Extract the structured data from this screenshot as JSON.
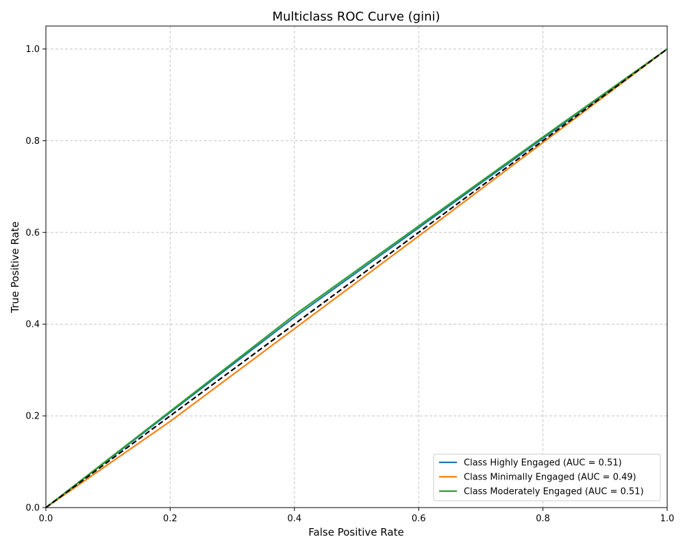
{
  "chart_data": {
    "type": "line",
    "title": "Multiclass ROC Curve (gini)",
    "xlabel": "False Positive Rate",
    "ylabel": "True Positive Rate",
    "xlim": [
      0.0,
      1.0
    ],
    "ylim": [
      0.0,
      1.05
    ],
    "xticks": [
      "0.0",
      "0.2",
      "0.4",
      "0.6",
      "0.8",
      "1.0"
    ],
    "yticks": [
      "0.0",
      "0.2",
      "0.4",
      "0.6",
      "0.8",
      "1.0"
    ],
    "grid": true,
    "legend_position": "bottom-right",
    "series": [
      {
        "name": "Class Highly Engaged (AUC = 0.51)",
        "color": "#1f77b4",
        "x": [
          0.0,
          0.4,
          0.6,
          1.0
        ],
        "y": [
          0.0,
          0.415,
          0.61,
          1.0
        ]
      },
      {
        "name": "Class Minimally Engaged (AUC = 0.49)",
        "color": "#ff7f0e",
        "x": [
          0.0,
          0.2,
          0.6,
          1.0
        ],
        "y": [
          0.0,
          0.188,
          0.592,
          1.0
        ]
      },
      {
        "name": "Class Moderately Engaged (AUC = 0.51)",
        "color": "#2ca02c",
        "x": [
          0.0,
          0.4,
          0.8,
          1.0
        ],
        "y": [
          0.0,
          0.42,
          0.808,
          1.0
        ]
      }
    ],
    "reference_line": {
      "color": "#000000",
      "x": [
        0.0,
        1.0
      ],
      "y": [
        0.0,
        1.0
      ]
    }
  }
}
